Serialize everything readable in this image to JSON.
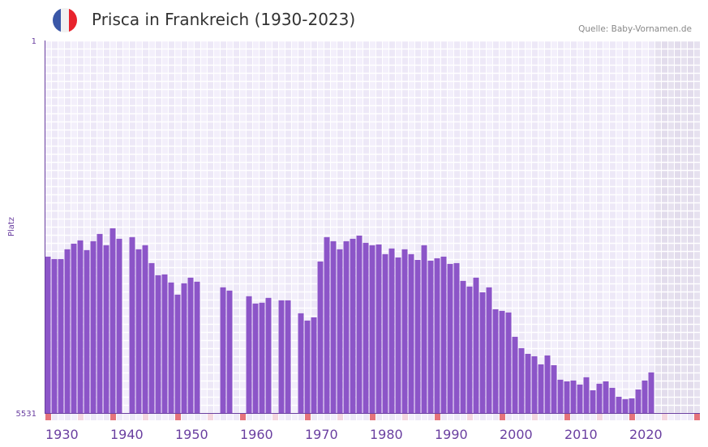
{
  "header": {
    "title": "Prisca in Frankreich (1930-2023)",
    "source": "Quelle: Baby-Vornamen.de",
    "flag_colors": [
      "#3a57a7",
      "#f1f1f1",
      "#e8232d"
    ]
  },
  "chart_data": {
    "type": "bar",
    "title": "Prisca in Frankreich (1930-2023)",
    "xlabel": "",
    "ylabel": "Platz",
    "ylim": [
      1,
      5531
    ],
    "y_inverted": true,
    "y_tick_labels": [
      "1",
      "5531"
    ],
    "x_range": [
      1930,
      2030
    ],
    "x_tick_labels": [
      "1930",
      "1940",
      "1950",
      "1960",
      "1970",
      "1980",
      "1990",
      "2000",
      "2010",
      "2020"
    ],
    "x_tick_values": [
      1930,
      1940,
      1950,
      1960,
      1970,
      1980,
      1990,
      2000,
      2010,
      2020
    ],
    "shaded_from_year": 2024,
    "bar_color": "#8c55c8",
    "grid": true,
    "x": [
      1930,
      1931,
      1932,
      1933,
      1934,
      1935,
      1936,
      1937,
      1938,
      1939,
      1940,
      1941,
      1942,
      1943,
      1944,
      1945,
      1946,
      1947,
      1948,
      1949,
      1950,
      1951,
      1952,
      1953,
      1954,
      1955,
      1956,
      1957,
      1958,
      1959,
      1960,
      1961,
      1962,
      1963,
      1964,
      1965,
      1966,
      1967,
      1968,
      1969,
      1970,
      1971,
      1972,
      1973,
      1974,
      1975,
      1976,
      1977,
      1978,
      1979,
      1980,
      1981,
      1982,
      1983,
      1984,
      1985,
      1986,
      1987,
      1988,
      1989,
      1990,
      1991,
      1992,
      1993,
      1994,
      1995,
      1996,
      1997,
      1998,
      1999,
      2000,
      2001,
      2002,
      2003,
      2004,
      2005,
      2006,
      2007,
      2008,
      2009,
      2010,
      2011,
      2012,
      2013,
      2014,
      2015,
      2016,
      2017,
      2018,
      2019,
      2020,
      2021,
      2022,
      2023
    ],
    "values": [
      3210,
      3246,
      3246,
      3101,
      3017,
      2969,
      3113,
      2981,
      2873,
      3041,
      2789,
      2945,
      null,
      2921,
      3101,
      3041,
      3306,
      3486,
      3474,
      3594,
      3774,
      3606,
      3522,
      3582,
      null,
      null,
      null,
      3666,
      3714,
      null,
      null,
      3798,
      3906,
      3894,
      3822,
      null,
      3858,
      3858,
      null,
      4051,
      4159,
      4111,
      3282,
      2921,
      2981,
      3101,
      2981,
      2945,
      2897,
      3005,
      3041,
      3029,
      3173,
      3089,
      3222,
      3101,
      3173,
      3258,
      3041,
      3270,
      3234,
      3210,
      3318,
      3306,
      3570,
      3654,
      3522,
      3739,
      3666,
      3991,
      4015,
      4039,
      4400,
      4569,
      4653,
      4689,
      4809,
      4677,
      4821,
      5037,
      5061,
      5049,
      5109,
      5001,
      5194,
      5097,
      5061,
      5158,
      5290,
      5326,
      5314,
      5182,
      5049,
      4929
    ]
  }
}
